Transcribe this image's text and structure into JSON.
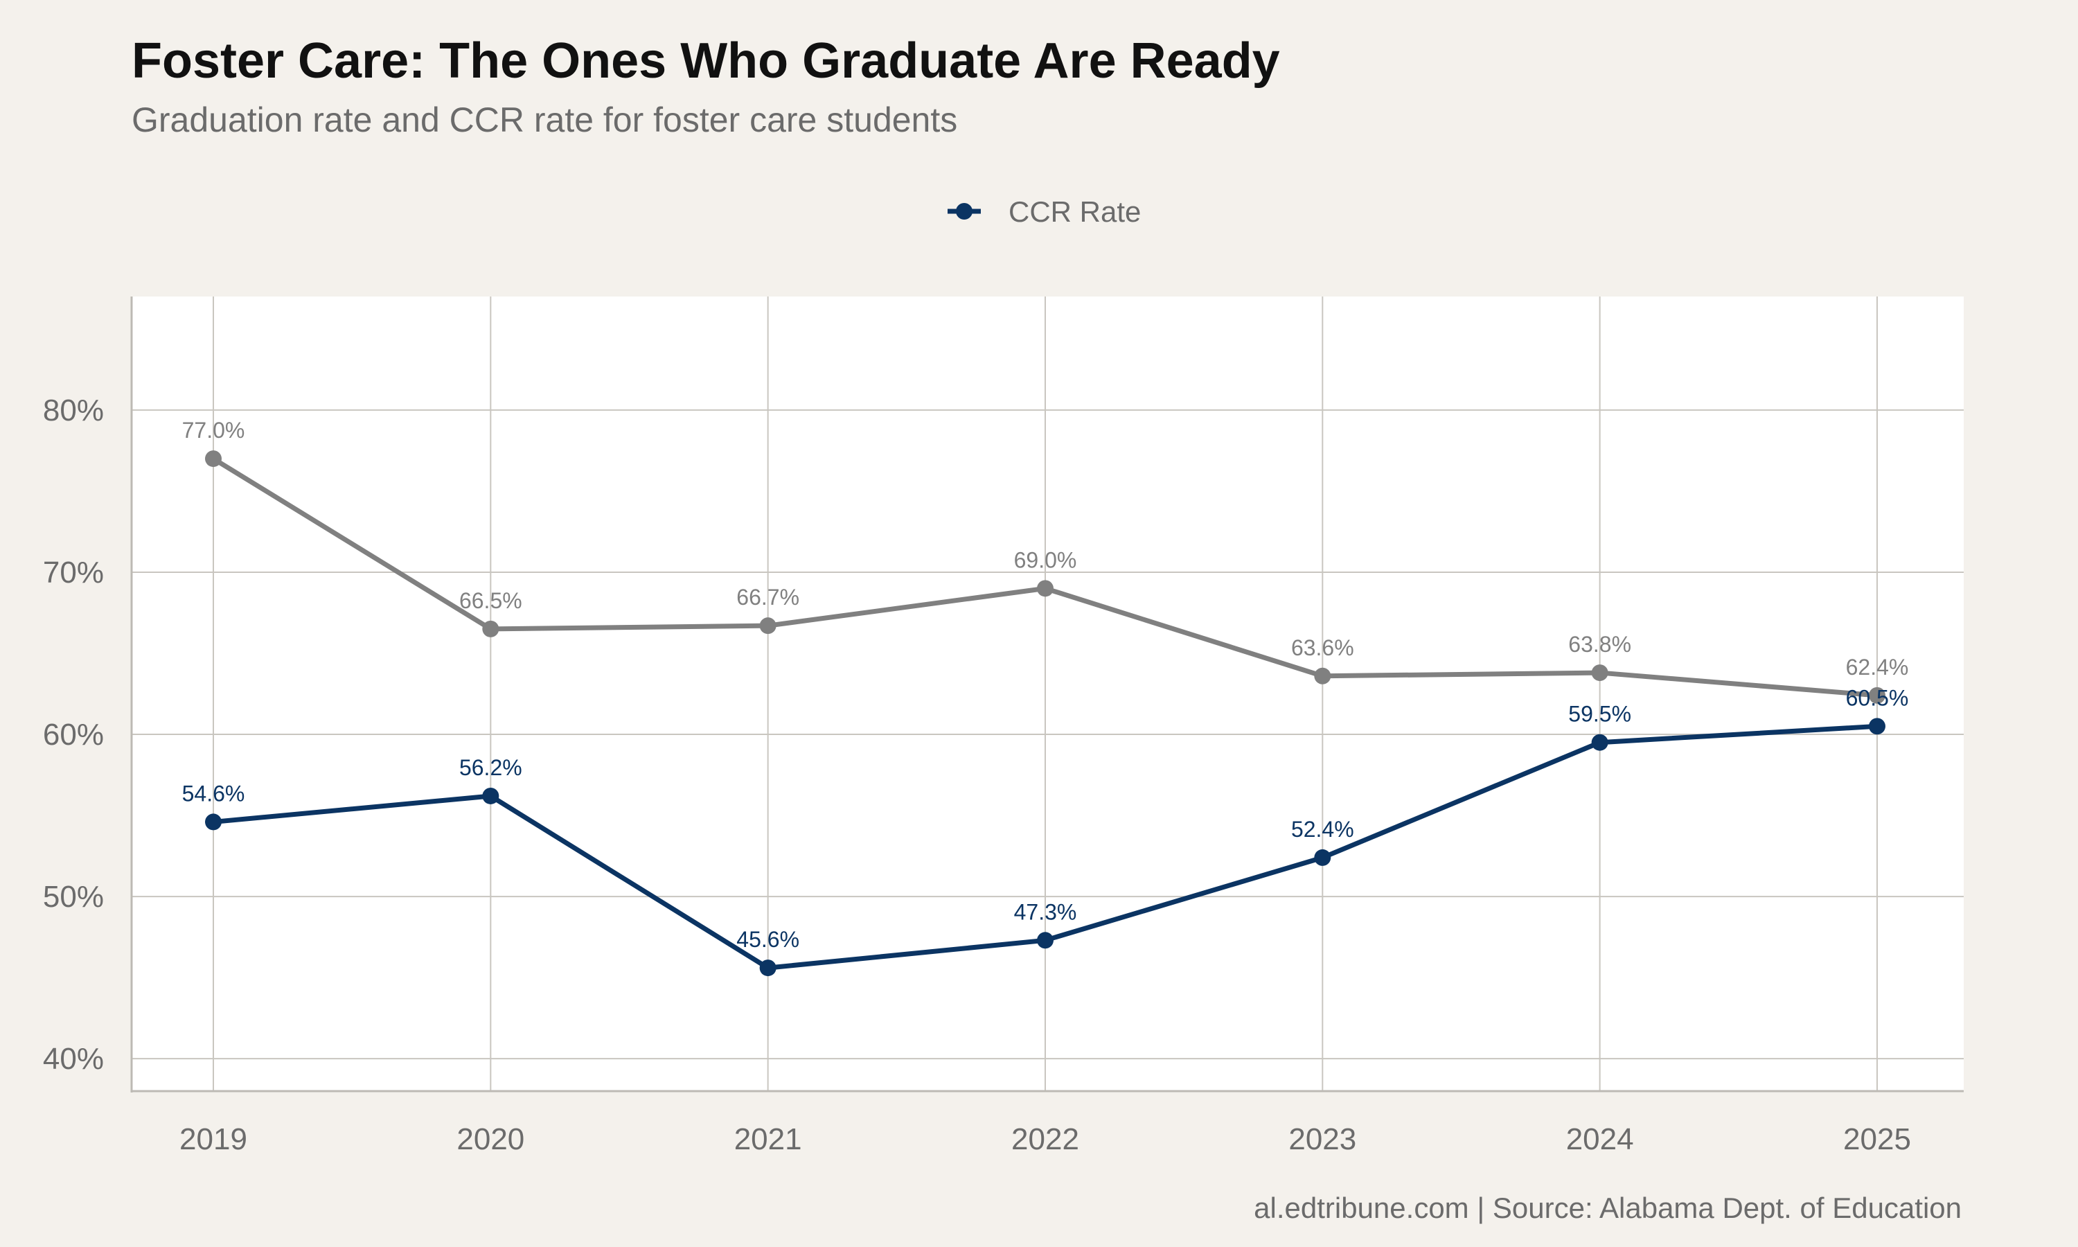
{
  "chart_data": {
    "type": "line",
    "title": "Foster Care: The Ones Who Graduate Are Ready",
    "subtitle": "Graduation rate and CCR rate for foster care students",
    "caption": "al.edtribune.com | Source: Alabama Dept. of Education",
    "x": [
      "2019",
      "2020",
      "2021",
      "2022",
      "2023",
      "2024",
      "2025"
    ],
    "ylim": [
      38,
      87
    ],
    "yticks": [
      40,
      50,
      60,
      70,
      80
    ],
    "ytick_labels": [
      "40%",
      "50%",
      "60%",
      "70%",
      "80%"
    ],
    "grid": true,
    "legend_position": "top",
    "legend": [
      {
        "label": "CCR Rate",
        "color": "#0b3463"
      }
    ],
    "series": [
      {
        "color": "#808080",
        "values": [
          77.0,
          66.5,
          66.7,
          69.0,
          63.6,
          63.8,
          62.4
        ],
        "labels": [
          "77.0%",
          "66.5%",
          "66.7%",
          "69.0%",
          "63.6%",
          "63.8%",
          "62.4%"
        ]
      },
      {
        "name": "CCR Rate",
        "color": "#0b3463",
        "values": [
          54.6,
          56.2,
          45.6,
          47.3,
          52.4,
          59.5,
          60.5
        ],
        "labels": [
          "54.6%",
          "56.2%",
          "45.6%",
          "47.3%",
          "52.4%",
          "59.5%",
          "60.5%"
        ]
      }
    ]
  }
}
